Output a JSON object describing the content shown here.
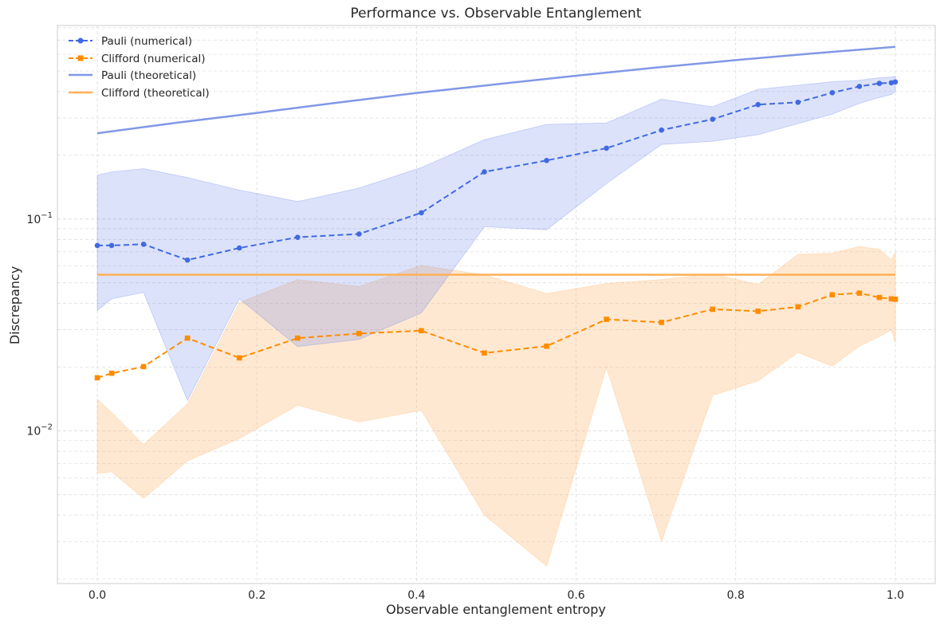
{
  "chart_data": {
    "type": "line",
    "title": "Performance vs. Observable Entanglement",
    "xlabel": "Observable entanglement entropy",
    "ylabel": "Discrepancy",
    "xlim": [
      -0.05,
      1.05
    ],
    "ylim": [
      0.0019,
      0.82
    ],
    "yscale": "log",
    "grid": true,
    "legend_position": "top-left",
    "x_ticks": [
      0.0,
      0.2,
      0.4,
      0.6,
      0.8,
      1.0
    ],
    "x_tick_labels": [
      "0.0",
      "0.2",
      "0.4",
      "0.6",
      "0.8",
      "1.0"
    ],
    "y_ticks": [
      {
        "value": 0.1,
        "base": "10",
        "exp": "−1"
      },
      {
        "value": 0.01,
        "base": "10",
        "exp": "−2"
      }
    ],
    "colors": {
      "pauli_num": "#4169E1",
      "pauli_band": "#6a85ea",
      "pauli_theory": "#8098e6",
      "clifford_num": "#FF8C00",
      "clifford_band": "#FFB366",
      "clifford_theory": "#FFB155",
      "grid": "#dcdcdc",
      "axis": "#cccccc"
    },
    "series": [
      {
        "name": "Pauli (numerical)",
        "style": "dashed-circle",
        "x": [
          0.0,
          0.018,
          0.058,
          0.113,
          0.178,
          0.251,
          0.328,
          0.406,
          0.485,
          0.563,
          0.638,
          0.707,
          0.771,
          0.828,
          0.878,
          0.921,
          0.955,
          0.98,
          0.995,
          1.0
        ],
        "values": [
          0.075,
          0.075,
          0.076,
          0.064,
          0.073,
          0.082,
          0.085,
          0.107,
          0.167,
          0.189,
          0.216,
          0.263,
          0.296,
          0.347,
          0.356,
          0.395,
          0.423,
          0.437,
          0.44,
          0.444
        ],
        "band_lower": [
          0.037,
          0.042,
          0.045,
          0.0139,
          0.042,
          0.025,
          0.027,
          0.036,
          0.092,
          0.089,
          0.147,
          0.225,
          0.233,
          0.25,
          0.282,
          0.313,
          0.352,
          0.375,
          0.387,
          0.4
        ],
        "band_upper": [
          0.161,
          0.167,
          0.173,
          0.157,
          0.137,
          0.121,
          0.14,
          0.175,
          0.237,
          0.28,
          0.284,
          0.368,
          0.339,
          0.41,
          0.428,
          0.445,
          0.452,
          0.465,
          0.468,
          0.471
        ]
      },
      {
        "name": "Clifford (numerical)",
        "style": "dashed-square",
        "x": [
          0.0,
          0.018,
          0.058,
          0.113,
          0.178,
          0.251,
          0.328,
          0.406,
          0.485,
          0.563,
          0.638,
          0.707,
          0.771,
          0.828,
          0.878,
          0.921,
          0.955,
          0.98,
          0.995,
          1.0
        ],
        "values": [
          0.0178,
          0.0187,
          0.0201,
          0.0274,
          0.0221,
          0.0274,
          0.0288,
          0.0297,
          0.0233,
          0.0251,
          0.0336,
          0.0325,
          0.0375,
          0.0367,
          0.0385,
          0.0439,
          0.0447,
          0.0426,
          0.042,
          0.0418
        ],
        "band_lower": [
          0.0063,
          0.0064,
          0.0048,
          0.0072,
          0.0092,
          0.0132,
          0.011,
          0.0125,
          0.004,
          0.0023,
          0.0199,
          0.003,
          0.0147,
          0.0172,
          0.0234,
          0.0202,
          0.0251,
          0.0279,
          0.03,
          0.026
        ],
        "band_upper": [
          0.0141,
          0.0122,
          0.0086,
          0.0134,
          0.0403,
          0.0518,
          0.048,
          0.0604,
          0.0545,
          0.0445,
          0.0496,
          0.0518,
          0.0551,
          0.0491,
          0.0681,
          0.0689,
          0.0742,
          0.072,
          0.0642,
          0.07
        ]
      },
      {
        "name": "Pauli (theoretical)",
        "style": "solid",
        "x": [
          0.0,
          0.1,
          0.2,
          0.3,
          0.4,
          0.5,
          0.6,
          0.7,
          0.8,
          0.9,
          1.0
        ],
        "values": [
          0.254,
          0.285,
          0.317,
          0.354,
          0.394,
          0.433,
          0.475,
          0.519,
          0.563,
          0.607,
          0.65
        ]
      },
      {
        "name": "Clifford (theoretical)",
        "style": "solid",
        "x": [
          0.0,
          1.0
        ],
        "values": [
          0.0546,
          0.0546
        ]
      }
    ]
  }
}
